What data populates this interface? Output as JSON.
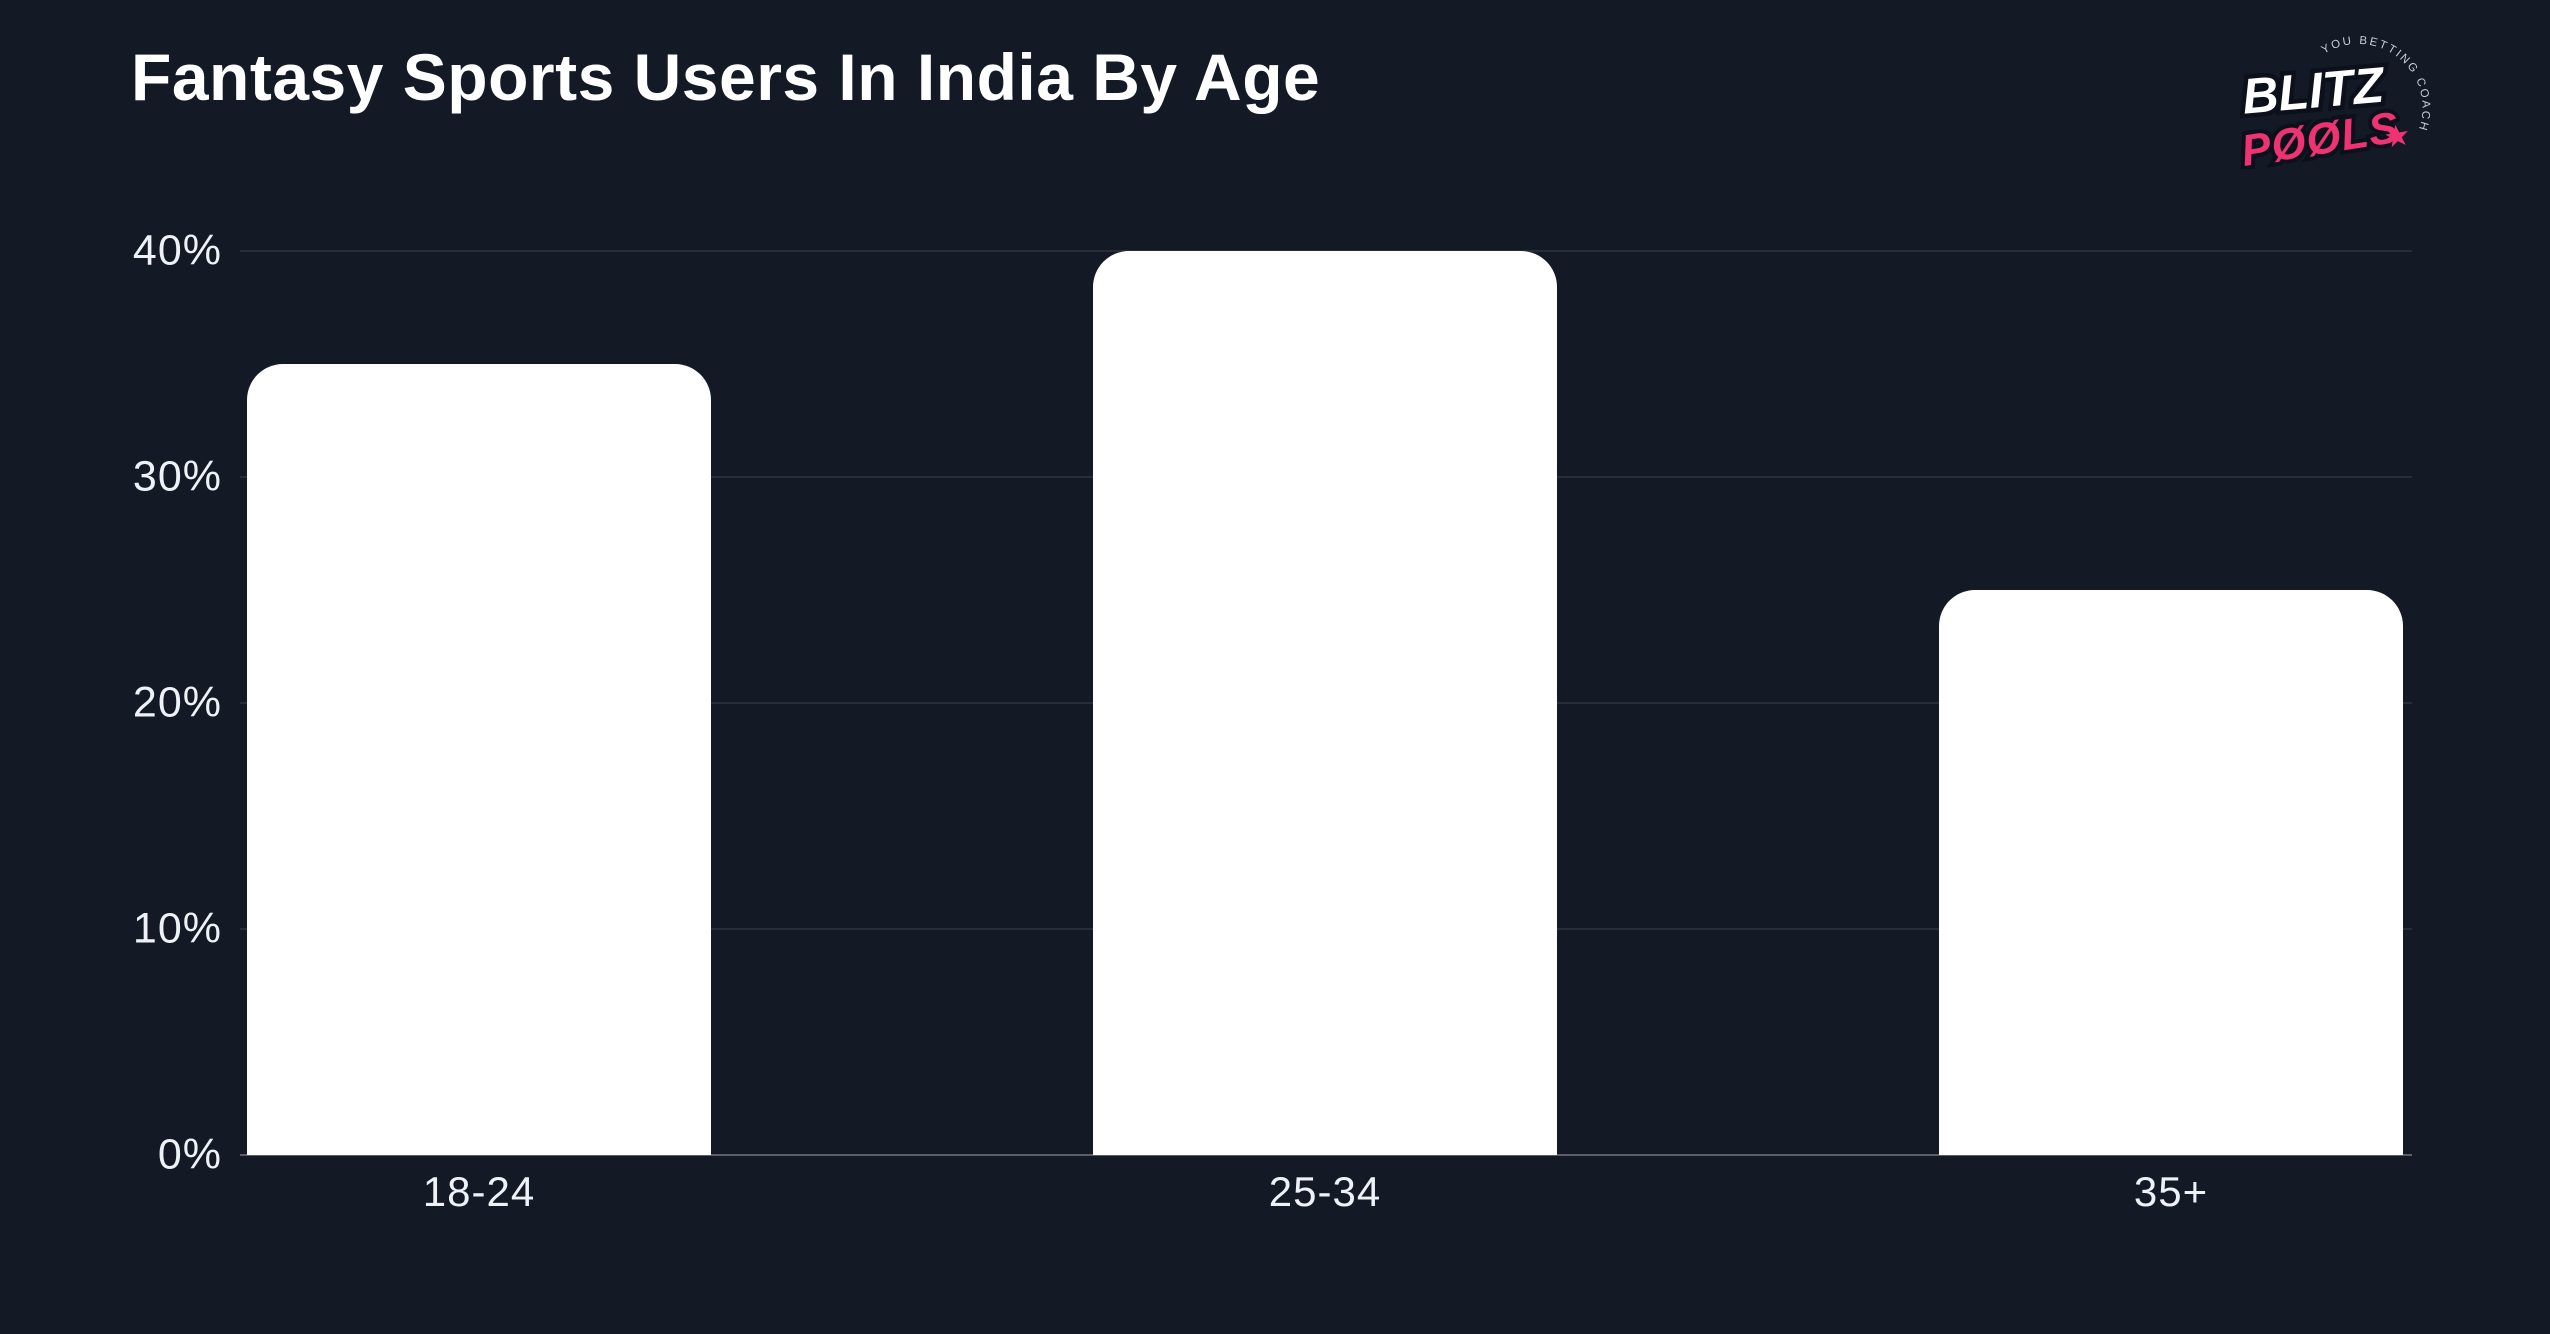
{
  "page": {
    "background_color": "#131925",
    "text_color": "#ffffff"
  },
  "brand": {
    "name_line1": "BLITZ",
    "name_line2": "POOLS",
    "tagline": "YOU BETTING COACH",
    "star_icon": "★",
    "pink_color": "#ee3372",
    "white_color": "#ffffff"
  },
  "chart_data": {
    "type": "bar",
    "title": "Fantasy Sports Users In India By Age",
    "categories": [
      "18-24",
      "25-34",
      "35+"
    ],
    "values": [
      35,
      40,
      25
    ],
    "unit": "%",
    "xlabel": "",
    "ylabel": "",
    "ylim": [
      0,
      40
    ],
    "yticks": [
      0,
      10,
      20,
      30,
      40
    ],
    "ytick_labels": [
      "0%",
      "10%",
      "20%",
      "30%",
      "40%"
    ],
    "grid": "horizontal",
    "legend": "none",
    "bar_color": "#ffffff",
    "background": "#131925"
  }
}
